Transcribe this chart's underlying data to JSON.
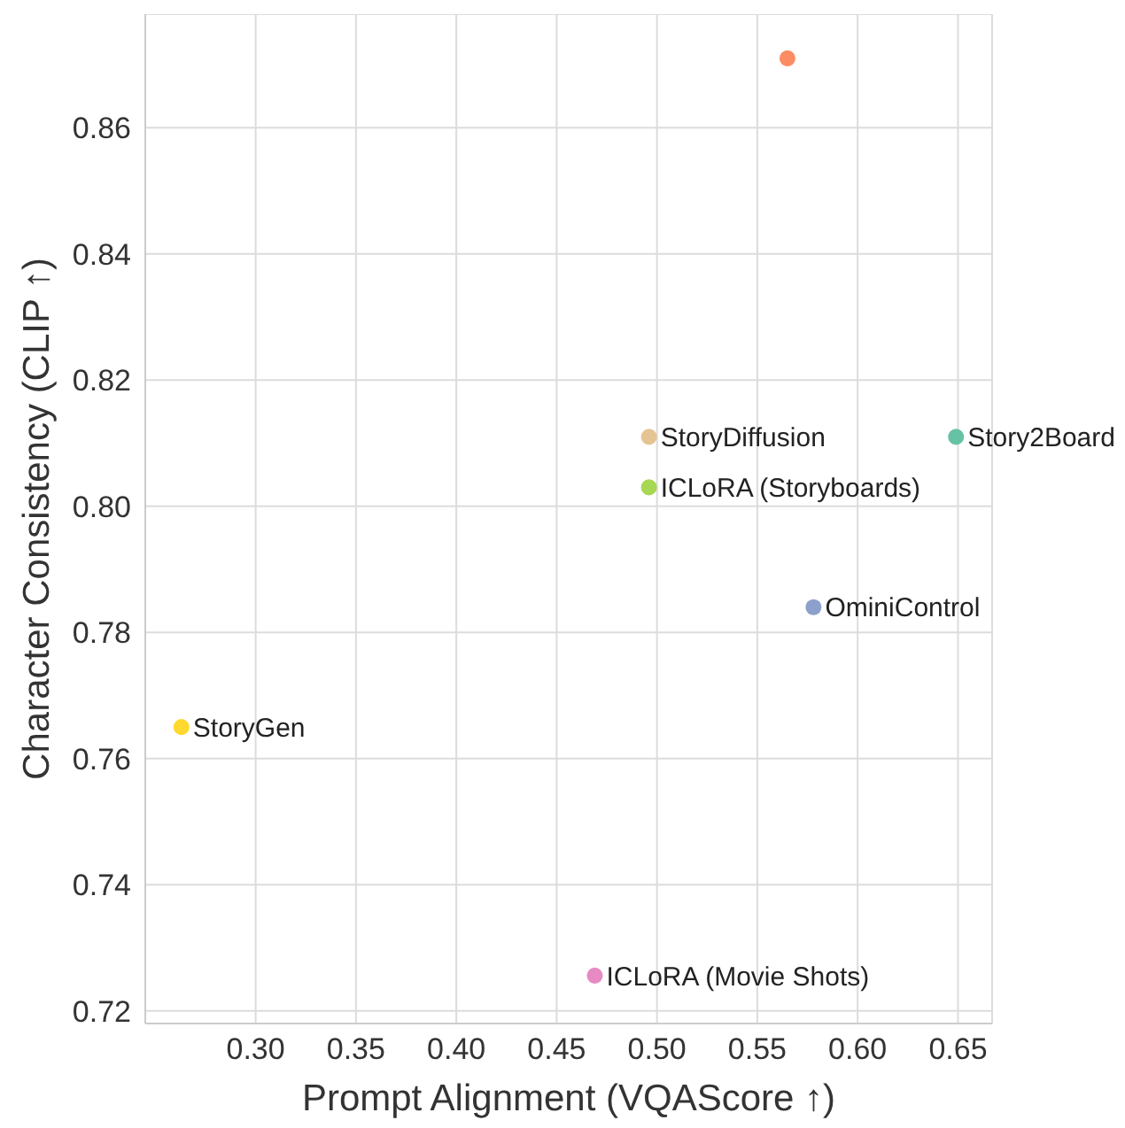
{
  "chart_data": {
    "type": "scatter",
    "xlabel": "Prompt Alignment (VQAScore ↑)",
    "ylabel": "Character Consistency (CLIP ↑)",
    "xlim": [
      0.245,
      0.667
    ],
    "xticks": [
      {
        "value": 0.3,
        "label": "0.30"
      },
      0.35,
      {
        "value": 0.4,
        "label": "0.40"
      },
      0.45,
      {
        "value": 0.5,
        "label": "0.50"
      },
      0.55,
      {
        "value": 0.6,
        "label": "0.60"
      },
      0.65
    ],
    "ylim": [
      0.718,
      0.878
    ],
    "yticks": [
      0.72,
      0.74,
      0.76,
      0.78,
      {
        "value": 0.8,
        "label": "0.80"
      },
      0.82,
      0.84,
      0.86
    ],
    "grid": true,
    "legend": false,
    "marker": "circle",
    "series": [
      {
        "color": "#fc8d62",
        "x": [
          0.565
        ],
        "values": [
          0.871
        ]
      },
      {
        "name": "StoryDiffusion",
        "color": "#e5c494",
        "x": [
          0.496
        ],
        "values": [
          0.811
        ]
      },
      {
        "name": "ICLoRA (Storyboards)",
        "color": "#a6d854",
        "x": [
          0.496
        ],
        "values": [
          0.803
        ]
      },
      {
        "name": "Story2Board",
        "color": "#66c2a5",
        "x": [
          0.649
        ],
        "values": [
          0.811
        ]
      },
      {
        "name": "OminiControl",
        "color": "#8da0cb",
        "x": [
          0.578
        ],
        "values": [
          0.784
        ]
      },
      {
        "name": "StoryGen",
        "color": "#ffd92f",
        "x": [
          0.263
        ],
        "values": [
          0.765
        ]
      },
      {
        "name": "ICLoRA (Movie Shots)",
        "color": "#e78ac3",
        "x": [
          0.469
        ],
        "values": [
          0.7256
        ]
      }
    ]
  }
}
